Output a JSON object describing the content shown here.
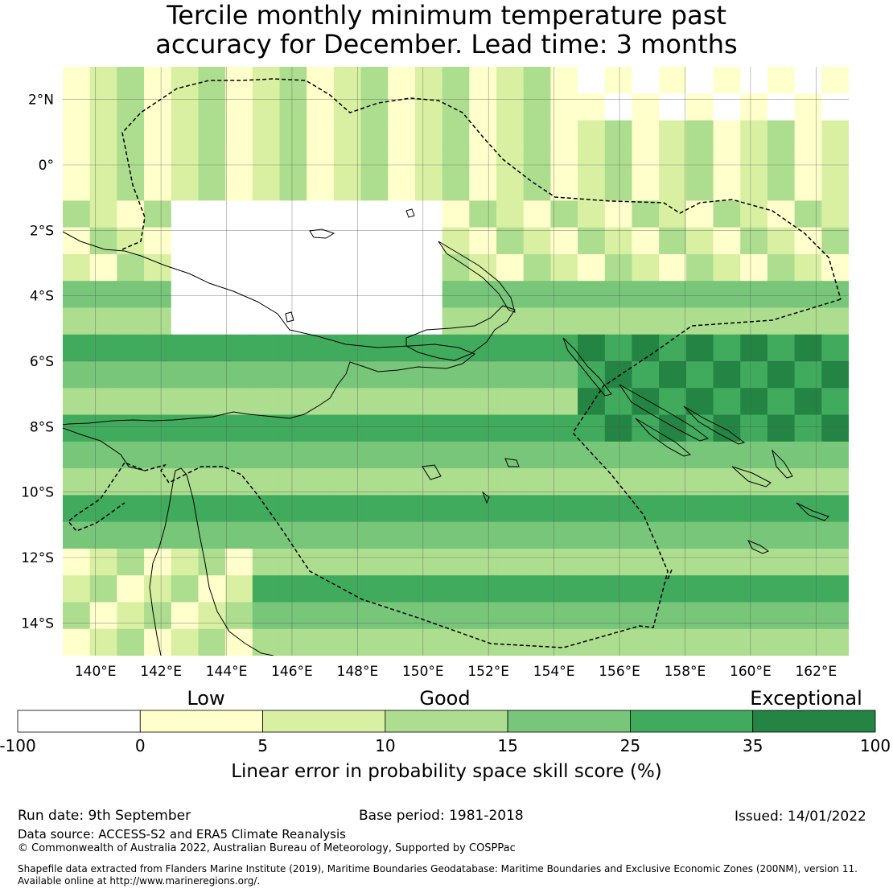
{
  "title_line1": "Tercile monthly minimum temperature past",
  "title_line2": "accuracy for December. Lead time: 3 months",
  "map": {
    "lon_labels": [
      "140°E",
      "142°E",
      "144°E",
      "146°E",
      "148°E",
      "150°E",
      "152°E",
      "154°E",
      "156°E",
      "158°E",
      "160°E",
      "162°E"
    ],
    "lat_labels": [
      "2°N",
      "0°",
      "2°S",
      "4°S",
      "6°S",
      "8°S",
      "10°S",
      "12°S",
      "14°S"
    ],
    "lon_range": [
      139,
      163
    ],
    "lat_range": [
      -15,
      3
    ]
  },
  "legend": {
    "categories": [
      "Low",
      "Good",
      "Exceptional"
    ],
    "bin_edges": [
      "-100",
      "0",
      "5",
      "10",
      "15",
      "25",
      "35",
      "100"
    ],
    "colors": [
      "#ffffff",
      "#ffffcc",
      "#d9f0a3",
      "#addd8e",
      "#78c679",
      "#41ab5d",
      "#238443"
    ],
    "label": "Linear error in probability space skill score (%)"
  },
  "footer": {
    "run_date": "Run date: 9th September",
    "base_period": "Base period: 1981-2018",
    "issued": "Issued: 14/01/2022",
    "data_source": "Data source: ACCESS-S2 and ERA5 Climate Reanalysis",
    "copyright": "© Commonwealth of Australia 2022, Australian Bureau of Meteorology, Supported by COSPPac",
    "shapefile_line1": "Shapefile data extracted from Flanders Marine Institute (2019), Maritime Boundaries Geodatabase: Maritime Boundaries and Exclusive Economic Zones (200NM), version 11.",
    "shapefile_line2": "Available online at http://www.marineregions.org/."
  }
}
